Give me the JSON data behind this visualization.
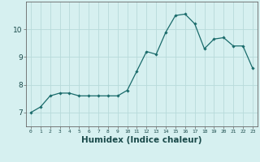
{
  "x": [
    0,
    1,
    2,
    3,
    4,
    5,
    6,
    7,
    8,
    9,
    10,
    11,
    12,
    13,
    14,
    15,
    16,
    17,
    18,
    19,
    20,
    21,
    22,
    23
  ],
  "y": [
    7.0,
    7.2,
    7.6,
    7.7,
    7.7,
    7.6,
    7.6,
    7.6,
    7.6,
    7.6,
    7.8,
    8.5,
    9.2,
    9.1,
    9.9,
    10.5,
    10.55,
    10.2,
    9.3,
    9.65,
    9.7,
    9.4,
    9.4,
    8.6
  ],
  "line_color": "#1a6b6b",
  "marker": "D",
  "marker_size": 1.8,
  "bg_color": "#d6f0f0",
  "grid_color": "#b8dada",
  "axis_color": "#666666",
  "xlabel": "Humidex (Indice chaleur)",
  "xlabel_fontsize": 7.5,
  "ylabel_ticks": [
    7,
    8,
    9,
    10
  ],
  "ylim": [
    6.5,
    11.0
  ],
  "xlim": [
    -0.5,
    23.5
  ]
}
